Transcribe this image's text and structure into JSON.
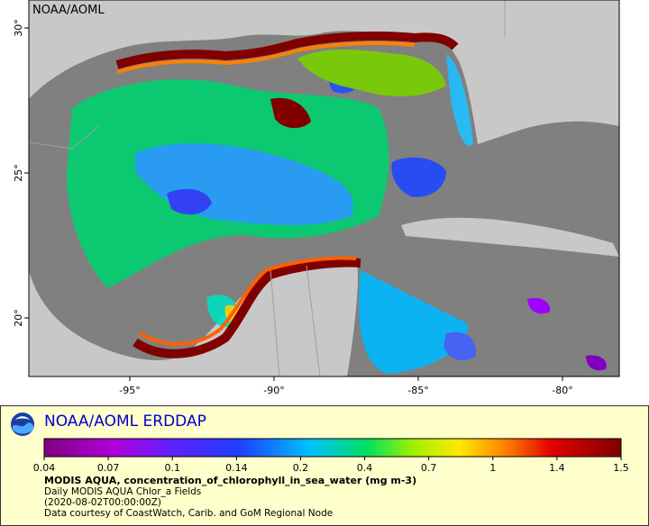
{
  "map": {
    "attribution": "NOAA/AOML",
    "lat_ticks": [
      "20°",
      "25°",
      "30°"
    ],
    "lon_ticks": [
      "-95°",
      "-90°",
      "-85°",
      "-80°"
    ],
    "colors": {
      "land": "#c8c8c8",
      "no_data_ocean": "#808080",
      "high_chlorophyll": "#7a0000"
    }
  },
  "legend": {
    "brand": "NOAA/AOML ERDDAP",
    "colorbar_ticks": [
      "0.04",
      "0.07",
      "0.1",
      "0.14",
      "0.2",
      "0.4",
      "0.7",
      "1",
      "1.4",
      "1.5"
    ],
    "dataset_title": "MODIS AQUA, concentration_of_chlorophyll_in_sea_water (mg m-3)",
    "line1": "Daily MODIS AQUA Chlor_a Fields",
    "line2": "(2020-08-02T00:00:00Z)",
    "line3": "Data courtesy of CoastWatch, Carib. and GoM Regional Node"
  }
}
